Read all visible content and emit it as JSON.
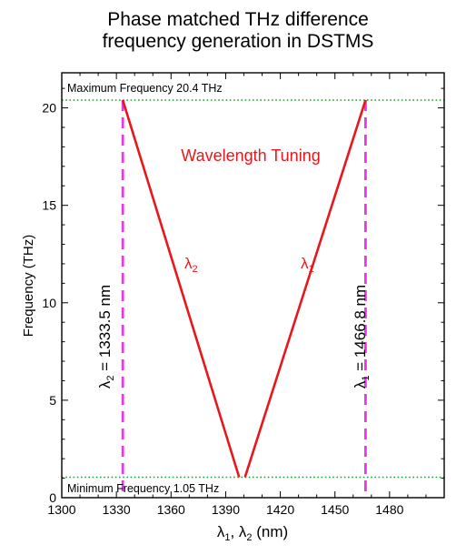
{
  "chart_data": {
    "type": "line",
    "title": [
      "Phase matched THz difference",
      "frequency generation in DSTMS"
    ],
    "xlabel": "λ1, λ2 (nm)",
    "ylabel": "Frequency (THz)",
    "xlim": [
      1300,
      1510
    ],
    "ylim": [
      0,
      21.8
    ],
    "xticks": [
      1300,
      1330,
      1360,
      1390,
      1420,
      1450,
      1480
    ],
    "yticks": [
      0,
      5,
      10,
      15,
      20
    ],
    "series": [
      {
        "name": "λ2",
        "color": "#e8171b",
        "x": [
          1333.5,
          1397.4
        ],
        "y": [
          20.4,
          1.05
        ]
      },
      {
        "name": "λ1",
        "color": "#e8171b",
        "x": [
          1400.6,
          1466.8
        ],
        "y": [
          1.05,
          20.4
        ]
      }
    ],
    "reference_lines": {
      "horizontal": [
        {
          "y": 20.4,
          "label": "Maximum Frequency 20.4 THz",
          "color": "#1f9d2e",
          "style": "dotted"
        },
        {
          "y": 1.05,
          "label": "Minimum Frequency 1.05 THz",
          "color": "#1f9d2e",
          "style": "dotted"
        }
      ],
      "vertical": [
        {
          "x": 1333.5,
          "label": "λ2 = 1333.5 nm",
          "color": "#e23ce0",
          "style": "dashed"
        },
        {
          "x": 1466.8,
          "label": "λ1 = 1466.8 nm",
          "color": "#e23ce0",
          "style": "dashed"
        }
      ]
    },
    "annotations": [
      {
        "text": "Wavelength Tuning",
        "color": "#e8171b"
      },
      {
        "text": "λ2",
        "color": "#e8171b"
      },
      {
        "text": "λ1",
        "color": "#e8171b"
      }
    ],
    "grid": false
  }
}
